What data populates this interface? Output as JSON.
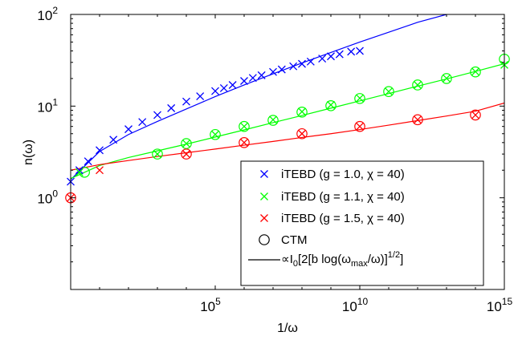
{
  "chart_data": {
    "type": "scatter",
    "xscale": "log",
    "yscale": "log",
    "xlabel": "1/ω",
    "ylabel": "n(ω)",
    "xlim": [
      1,
      1000000000000000.0
    ],
    "ylim": [
      0.1,
      100
    ],
    "xticks": [
      {
        "value": 100000.0,
        "base": "10",
        "exp": "5"
      },
      {
        "value": 10000000000.0,
        "base": "10",
        "exp": "10"
      },
      {
        "value": 1000000000000000.0,
        "base": "10",
        "exp": "15"
      }
    ],
    "yticks": [
      {
        "value": 1,
        "base": "10",
        "exp": "0"
      },
      {
        "value": 10,
        "base": "10",
        "exp": "1"
      },
      {
        "value": 100,
        "base": "10",
        "exp": "2"
      }
    ],
    "legend_position": "bottom-right",
    "series": [
      {
        "name": "iTEBD (g = 1.0, χ = 40)",
        "marker": "x",
        "color": "#0000ff",
        "x": [
          1,
          2,
          4,
          10,
          30,
          100,
          300,
          1000.0,
          3000.0,
          10000.0,
          30000.0,
          100000.0,
          200000.0,
          400000.0,
          1000000.0,
          2000000.0,
          4000000.0,
          10000000.0,
          20000000.0,
          50000000.0,
          100000000.0,
          200000000.0,
          500000000.0,
          1000000000.0,
          2000000000.0,
          5000000000.0,
          10000000000.0
        ],
        "y": [
          1.5,
          2.0,
          2.5,
          3.3,
          4.3,
          5.6,
          6.7,
          8.0,
          9.5,
          11.2,
          12.8,
          14.6,
          15.7,
          17.0,
          18.8,
          20.3,
          21.7,
          23.6,
          25.1,
          27.2,
          28.9,
          30.6,
          33.0,
          34.9,
          36.8,
          39.3,
          40.0
        ]
      },
      {
        "name": "iTEBD (g = 1.1, χ = 40)",
        "marker": "x",
        "color": "#00ff00",
        "x": [
          2,
          1000.0,
          10000.0,
          100000.0,
          1000000.0,
          10000000.0,
          100000000.0,
          1000000000.0,
          10000000000.0,
          100000000000.0,
          1000000000000.0,
          10000000000000.0,
          100000000000000.0,
          1000000000000000.0
        ],
        "y": [
          1.9,
          3.0,
          3.9,
          4.9,
          6.0,
          7.1,
          8.7,
          10.3,
          12.2,
          14.4,
          17.0,
          20.1,
          23.8,
          28.2
        ]
      },
      {
        "name": "iTEBD (g = 1.5, χ = 40)",
        "marker": "x",
        "color": "#ff0000",
        "x": [
          1,
          10,
          10000.0,
          1000000.0,
          100000000.0,
          10000000000.0,
          1000000000000.0,
          100000000000000.0
        ],
        "y": [
          1.0,
          2.0,
          3.0,
          4.0,
          5.0,
          6.0,
          7.1,
          8.0
        ]
      },
      {
        "name": "CTM",
        "marker": "o",
        "color": "#000000",
        "groups": [
          {
            "color": "#00ff00",
            "x": [
              3,
              1000.0,
              10000.0,
              100000.0,
              1000000.0,
              10000000.0,
              100000000.0,
              1000000000.0,
              10000000000.0,
              100000000000.0,
              1000000000000.0,
              10000000000000.0,
              100000000000000.0,
              1000000000000000.0
            ],
            "y": [
              1.9,
              3.0,
              3.9,
              4.9,
              6.0,
              7.0,
              8.6,
              10.1,
              12.1,
              14.4,
              17.0,
              20.0,
              23.6,
              32.5
            ]
          },
          {
            "color": "#ff0000",
            "x": [
              1,
              10000.0,
              1000000.0,
              100000000.0,
              10000000000.0,
              1000000000000.0,
              100000000000000.0
            ],
            "y": [
              1.0,
              3.0,
              4.0,
              5.0,
              6.0,
              7.1,
              8.0
            ]
          }
        ]
      },
      {
        "name": "fit",
        "legend_label": {
          "prefix": "∝I",
          "sub0": "0",
          "open": "[2[b log(ω",
          "sub1": "max",
          "close": "/ω)]",
          "sup": "1/2",
          "end": "]"
        },
        "marker": "line",
        "curves": [
          {
            "color": "#0000ff",
            "x": [
              1,
              10,
              100,
              1000.0,
              10000.0,
              100000.0,
              1000000.0,
              10000000.0,
              100000000.0,
              1000000000.0,
              10000000000.0,
              100000000000.0,
              1000000000000.0,
              10000000000000.0
            ],
            "y": [
              1.58,
              3.2,
              4.9,
              6.8,
              9.3,
              12.7,
              17.0,
              22.5,
              29.5,
              38.5,
              50.0,
              64.0,
              82.0,
              100.0
            ]
          },
          {
            "color": "#00ff00",
            "x": [
              1,
              10,
              100,
              1000.0,
              10000.0,
              100000.0,
              1000000.0,
              10000000.0,
              100000000.0,
              1000000000.0,
              10000000000.0,
              100000000000.0,
              1000000000000.0,
              10000000000000.0,
              100000000000000.0,
              1000000000000000.0
            ],
            "y": [
              1.62,
              2.25,
              2.75,
              3.25,
              3.85,
              4.6,
              5.5,
              6.6,
              7.9,
              9.5,
              11.4,
              13.7,
              16.5,
              19.8,
              23.9,
              29.0
            ]
          },
          {
            "color": "#ff0000",
            "x": [
              1,
              10,
              100,
              1000.0,
              10000.0,
              100000.0,
              1000000.0,
              10000000.0,
              100000000.0,
              1000000000.0,
              10000000000.0,
              100000000000.0,
              1000000000000.0,
              10000000000000.0,
              100000000000000.0,
              1000000000000000.0
            ],
            "y": [
              2.0,
              2.3,
              2.55,
              2.82,
              3.1,
              3.4,
              3.75,
              4.12,
              4.55,
              5.0,
              5.55,
              6.2,
              6.95,
              7.8,
              8.8,
              10.8
            ]
          }
        ]
      }
    ]
  }
}
